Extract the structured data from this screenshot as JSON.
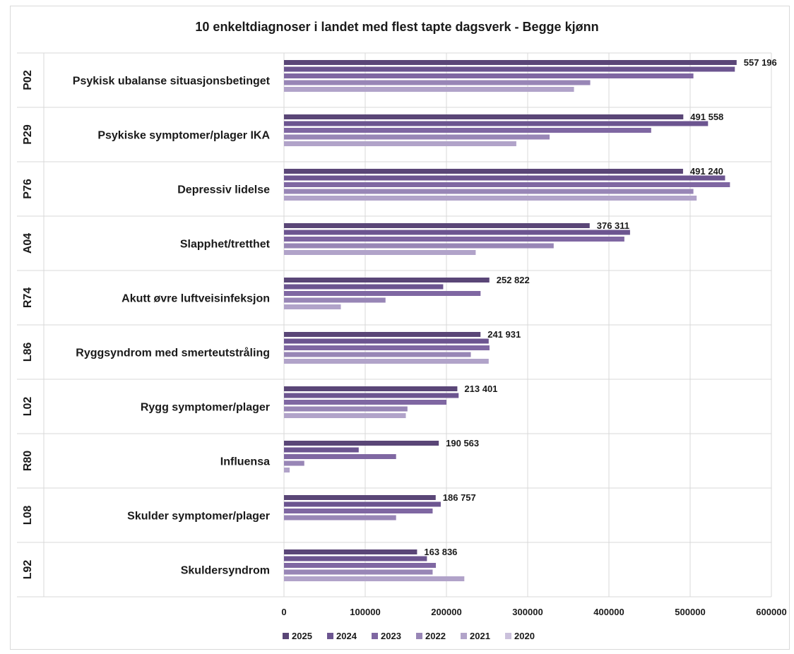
{
  "chart_data": {
    "type": "bar",
    "orientation": "horizontal",
    "title": "10 enkeltdiagnoser i landet med flest tapte dagsverk - Begge kjønn",
    "categories": [
      {
        "code": "P02",
        "name": "Psykisk ubalanse situasjonsbetinget"
      },
      {
        "code": "P29",
        "name": "Psykiske symptomer/plager IKA"
      },
      {
        "code": "P76",
        "name": "Depressiv lidelse"
      },
      {
        "code": "A04",
        "name": "Slapphet/tretthet"
      },
      {
        "code": "R74",
        "name": "Akutt øvre luftveisinfeksjon"
      },
      {
        "code": "L86",
        "name": "Ryggsyndrom med smerteutstråling"
      },
      {
        "code": "L02",
        "name": "Rygg symptomer/plager"
      },
      {
        "code": "R80",
        "name": "Influensa"
      },
      {
        "code": "L08",
        "name": "Skulder symptomer/plager"
      },
      {
        "code": "L92",
        "name": "Skuldersyndrom"
      }
    ],
    "series": [
      {
        "name": "2025",
        "color": "#5a4677",
        "values": [
          557196,
          491558,
          491240,
          376311,
          252822,
          241931,
          213401,
          190563,
          186757,
          163836
        ]
      },
      {
        "name": "2024",
        "color": "#6c5590",
        "values": [
          555000,
          522000,
          543000,
          426000,
          196000,
          252000,
          215000,
          92000,
          193000,
          176000
        ]
      },
      {
        "name": "2023",
        "color": "#7f67a2",
        "values": [
          504000,
          452000,
          549000,
          419000,
          242000,
          253000,
          200000,
          138000,
          183000,
          187000
        ]
      },
      {
        "name": "2022",
        "color": "#9886b6",
        "values": [
          377000,
          327000,
          504000,
          332000,
          125000,
          230000,
          152000,
          25000,
          138000,
          183000
        ]
      },
      {
        "name": "2021",
        "color": "#b1a3c9",
        "values": [
          357000,
          286000,
          508000,
          236000,
          70000,
          252000,
          150000,
          7000,
          0,
          222000
        ]
      },
      {
        "name": "2020",
        "color": "#cbc1dc",
        "values": [
          null,
          null,
          null,
          null,
          null,
          null,
          null,
          null,
          null,
          null
        ]
      }
    ],
    "data_labels": [
      "557 196",
      "491 558",
      "491 240",
      "376 311",
      "252 822",
      "241 931",
      "213 401",
      "190 563",
      "186 757",
      "163 836"
    ],
    "xlim": [
      0,
      600000
    ],
    "xticks": [
      "0",
      "100000",
      "200000",
      "300000",
      "400000",
      "500000",
      "600000"
    ],
    "grid": "vertical",
    "legend_position": "bottom"
  }
}
